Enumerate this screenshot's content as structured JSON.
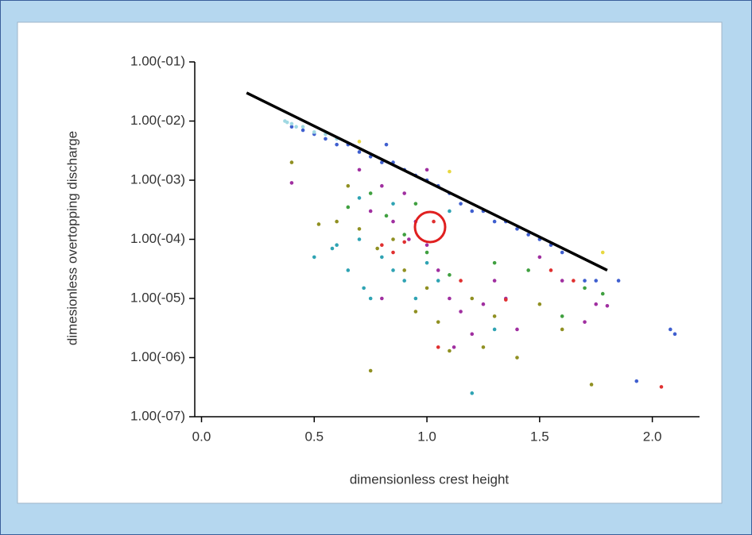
{
  "chart_data": {
    "type": "scatter",
    "xlabel": "dimensionless crest height",
    "ylabel": "dimesionless overtopping discharge",
    "xlim": [
      -0.03,
      2.22
    ],
    "ylim": [
      1e-07,
      0.1
    ],
    "log_y": true,
    "xticks": [
      {
        "value": 0,
        "label": "0.0"
      },
      0.5,
      {
        "value": 1,
        "label": "1.0"
      },
      1.5,
      {
        "value": 2,
        "label": "2.0"
      }
    ],
    "yticks": [
      {
        "value": 1e-07,
        "label": "1.00(-07)"
      },
      {
        "value": 1e-06,
        "label": "1.00(-06)"
      },
      {
        "value": 1e-05,
        "label": "1.00(-05)"
      },
      {
        "value": 0.0001,
        "label": "1.00(-04)"
      },
      {
        "value": 0.001,
        "label": "1.00(-03)"
      },
      {
        "value": 0.01,
        "label": "1.00(-02)"
      },
      {
        "value": 0.1,
        "label": "1.00(-01)"
      }
    ],
    "series": [
      {
        "color": "#3f5fcf",
        "x": [
          0.4,
          0.45,
          0.5,
          0.55,
          0.6,
          0.65,
          0.7,
          0.75,
          0.8,
          0.85,
          0.9,
          0.95,
          1.0,
          1.05,
          1.1,
          1.15,
          1.2,
          1.25,
          1.3,
          1.35,
          1.4,
          1.45,
          1.5,
          1.55,
          1.6,
          1.7,
          1.75,
          1.85,
          2.08,
          2.1,
          1.93,
          0.82
        ],
        "values": [
          0.008,
          0.007,
          0.006,
          0.005,
          0.004,
          0.004,
          0.003,
          0.0025,
          0.002,
          0.002,
          0.0015,
          0.0012,
          0.001,
          0.0008,
          0.0006,
          0.0004,
          0.0003,
          0.0003,
          0.0002,
          0.0002,
          0.00015,
          0.00012,
          0.0001,
          8e-05,
          6e-05,
          2e-05,
          2e-05,
          2e-05,
          3e-06,
          2.5e-06,
          4e-07,
          0.004
        ]
      },
      {
        "color": "#9fd8e2",
        "x": [
          0.37,
          0.4,
          0.42,
          0.45,
          0.5,
          0.55,
          0.6,
          0.38
        ],
        "values": [
          0.01,
          0.009,
          0.008,
          0.008,
          0.0065,
          0.006,
          0.005,
          0.0095
        ]
      },
      {
        "color": "#2fa3b3",
        "x": [
          0.5,
          0.58,
          0.65,
          0.7,
          0.72,
          0.75,
          0.8,
          0.85,
          0.9,
          0.95,
          1.0,
          1.05,
          1.1,
          1.2,
          1.3,
          0.6,
          0.7,
          0.85
        ],
        "values": [
          5e-05,
          7e-05,
          3e-05,
          0.0001,
          1.5e-05,
          1e-05,
          5e-05,
          3e-05,
          2e-05,
          1e-05,
          4e-05,
          2e-05,
          0.0003,
          2.5e-07,
          3e-06,
          8e-05,
          0.0005,
          0.0004
        ]
      },
      {
        "color": "#a02fa0",
        "x": [
          0.4,
          0.7,
          0.75,
          0.8,
          0.85,
          0.9,
          0.95,
          1.0,
          1.05,
          1.1,
          1.15,
          1.2,
          1.25,
          1.3,
          1.35,
          1.4,
          1.5,
          1.6,
          1.7,
          1.75,
          1.8,
          1.0,
          0.8,
          1.12,
          0.92
        ],
        "values": [
          0.0009,
          0.0015,
          0.0003,
          0.0008,
          0.0002,
          0.0006,
          0.0002,
          8e-05,
          3e-05,
          1e-05,
          6e-06,
          2.5e-06,
          8e-06,
          2e-05,
          1e-05,
          3e-06,
          5e-05,
          2e-05,
          4e-06,
          8e-06,
          7.5e-06,
          0.0015,
          1e-05,
          1.5e-06,
          0.0001
        ]
      },
      {
        "color": "#909022",
        "x": [
          0.4,
          0.52,
          0.6,
          0.7,
          0.75,
          0.78,
          0.85,
          0.9,
          0.95,
          1.0,
          1.05,
          1.1,
          1.2,
          1.3,
          1.4,
          1.5,
          1.6,
          1.73,
          0.65,
          1.25
        ],
        "values": [
          0.002,
          0.00018,
          0.0002,
          0.00015,
          6e-07,
          7e-05,
          0.0001,
          3e-05,
          6e-06,
          1.5e-05,
          4e-06,
          1.3e-06,
          1e-05,
          5e-06,
          1e-06,
          8e-06,
          3e-06,
          3.5e-07,
          0.0008,
          1.5e-06
        ]
      },
      {
        "color": "#40a040",
        "x": [
          0.65,
          0.75,
          0.82,
          0.9,
          1.0,
          1.1,
          1.3,
          1.45,
          1.6,
          1.7,
          1.78,
          0.95
        ],
        "values": [
          0.00035,
          0.0006,
          0.00025,
          0.00012,
          6e-05,
          2.5e-05,
          4e-05,
          3e-05,
          5e-06,
          1.5e-05,
          1.2e-05,
          0.0004
        ]
      },
      {
        "color": "#e03030",
        "x": [
          0.8,
          0.9,
          1.03,
          1.05,
          1.15,
          1.35,
          1.55,
          1.65,
          2.04,
          0.85
        ],
        "values": [
          8e-05,
          9e-05,
          0.0002,
          1.5e-06,
          2e-05,
          9.5e-06,
          3e-05,
          2e-05,
          3.2e-07,
          6e-05
        ]
      },
      {
        "color": "#e8d840",
        "x": [
          0.7,
          1.1,
          1.78
        ],
        "values": [
          0.0045,
          0.0014,
          6e-05
        ]
      }
    ],
    "lines": [
      {
        "color": "#000000",
        "x": [
          0.2,
          1.8
        ],
        "values": [
          0.03,
          3e-05
        ]
      }
    ]
  }
}
